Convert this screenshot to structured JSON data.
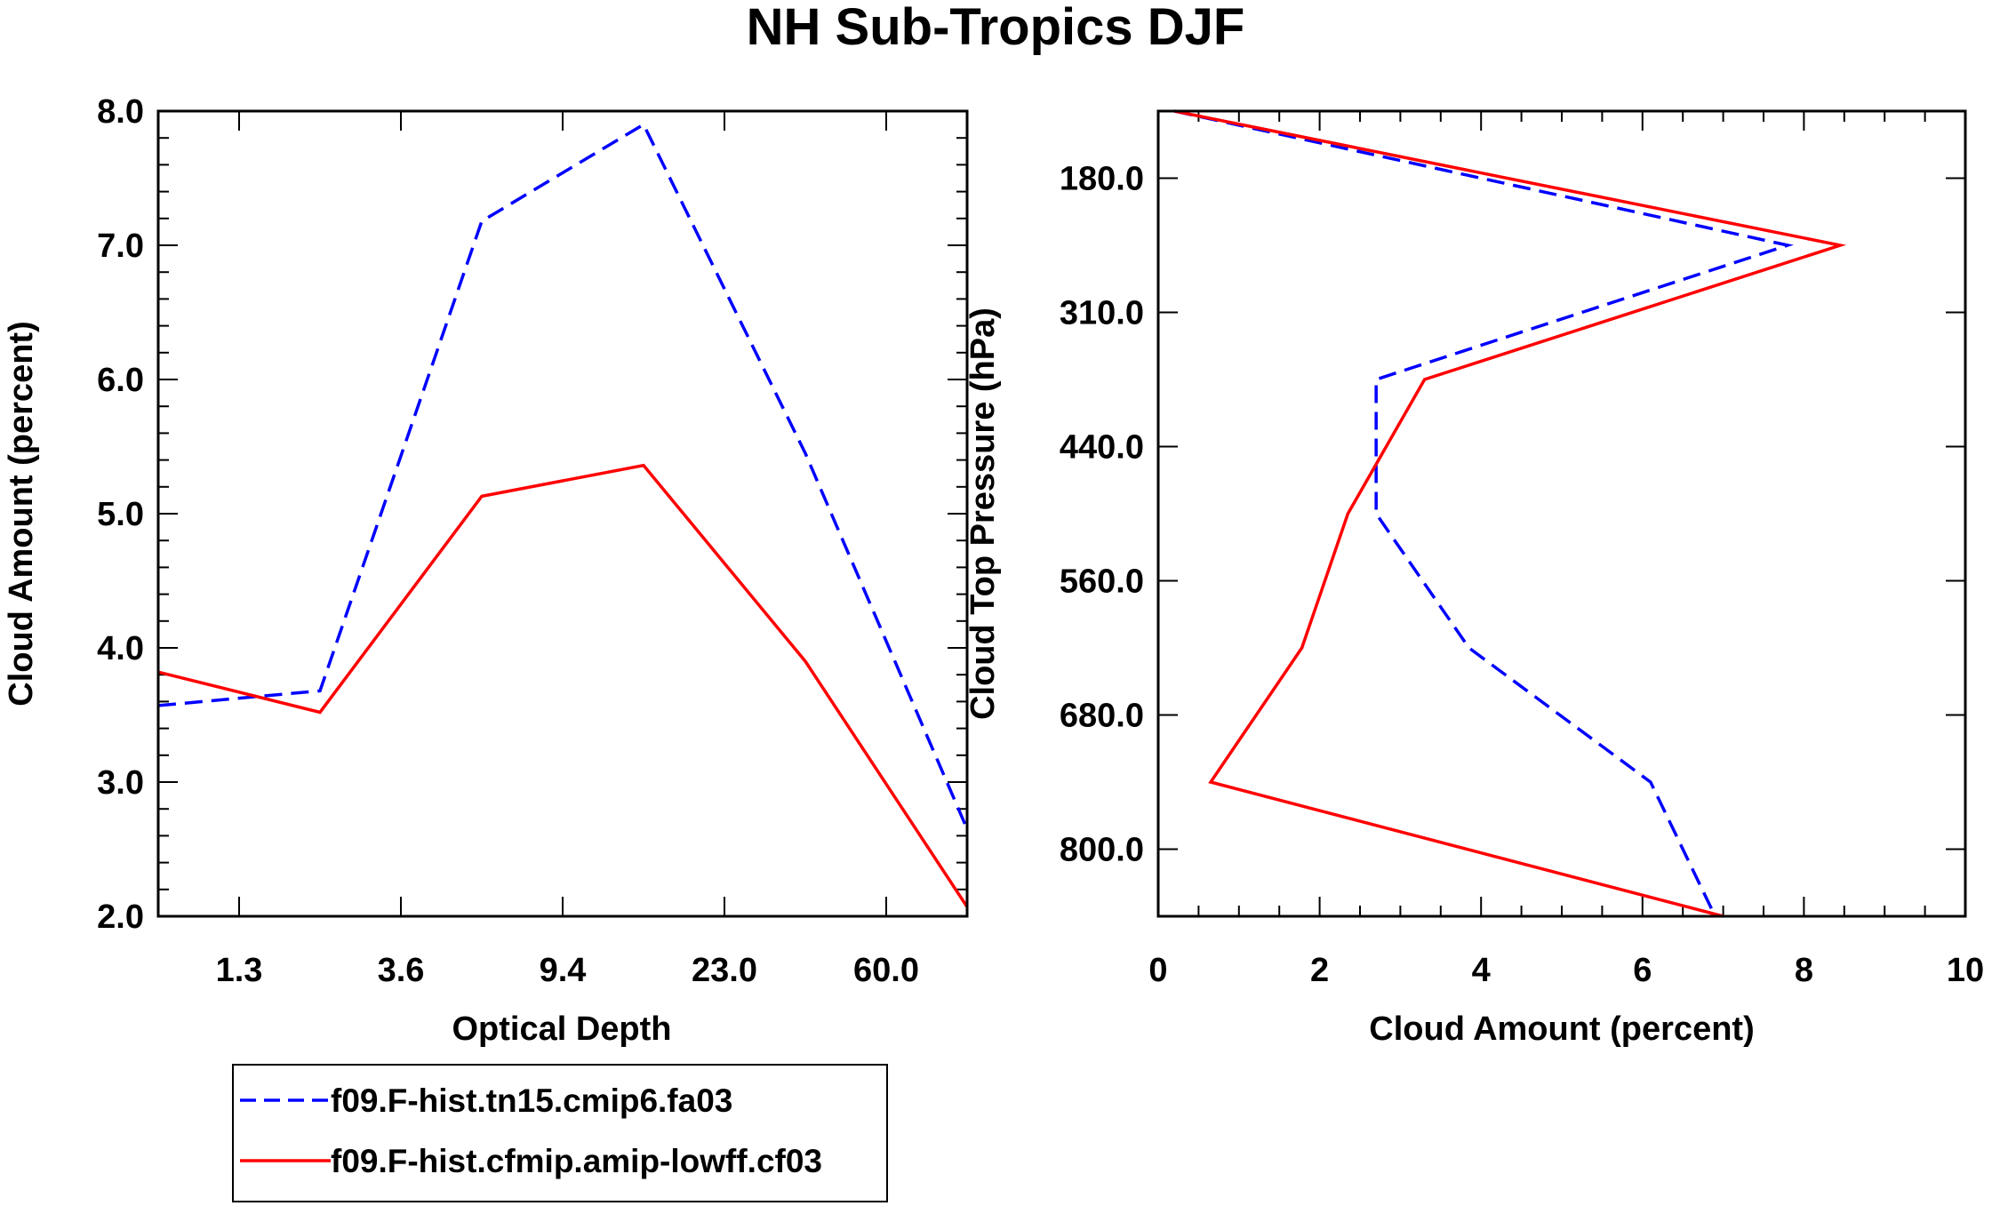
{
  "title": "NH Sub-Tropics DJF",
  "chart_data": [
    {
      "type": "line",
      "xlabel": "Optical Depth",
      "ylabel": "Cloud Amount (percent)",
      "x_tick_labels": [
        "1.3",
        "3.6",
        "9.4",
        "23.0",
        "60.0"
      ],
      "y_tick_labels": [
        "2.0",
        "3.0",
        "4.0",
        "5.0",
        "6.0",
        "7.0",
        "8.0"
      ],
      "ylim": [
        2.0,
        8.0
      ],
      "x_index": [
        0,
        1,
        2,
        3,
        4,
        5
      ],
      "series": [
        {
          "name": "f09.F-hist.tn15.cmip6.fa03",
          "values": [
            3.57,
            3.68,
            7.18,
            7.9,
            5.45,
            2.65
          ],
          "color": "#0000ff",
          "style": "dashed"
        },
        {
          "name": "f09.F-hist.cfmip.amip-lowff.cf03",
          "values": [
            3.82,
            3.52,
            5.13,
            5.36,
            3.9,
            2.07
          ],
          "color": "#ff0000",
          "style": "solid"
        }
      ]
    },
    {
      "type": "line",
      "xlabel": "Cloud Amount (percent)",
      "ylabel": "Cloud Top Pressure (hPa)",
      "x_tick_labels": [
        "0",
        "2",
        "4",
        "6",
        "8",
        "10"
      ],
      "y_tick_labels": [
        "180.0",
        "310.0",
        "440.0",
        "560.0",
        "680.0",
        "800.0"
      ],
      "xlim": [
        0,
        10
      ],
      "y_levels": [
        "90",
        "245",
        "375",
        "500",
        "620",
        "740",
        "900"
      ],
      "series": [
        {
          "name": "f09.F-hist.tn15.cmip6.fa03",
          "values": [
            0.2,
            7.8,
            2.7,
            2.7,
            3.85,
            6.1,
            6.9
          ],
          "color": "#0000ff",
          "style": "dashed"
        },
        {
          "name": "f09.F-hist.cfmip.amip-lowff.cf03",
          "values": [
            0.2,
            8.45,
            3.3,
            2.35,
            1.78,
            0.65,
            7.0
          ],
          "color": "#ff0000",
          "style": "solid"
        }
      ]
    }
  ],
  "legend": {
    "entries": [
      {
        "label": "f09.F-hist.tn15.cmip6.fa03",
        "color": "#0000ff",
        "style": "dashed"
      },
      {
        "label": "f09.F-hist.cfmip.amip-lowff.cf03",
        "color": "#ff0000",
        "style": "solid"
      }
    ]
  }
}
